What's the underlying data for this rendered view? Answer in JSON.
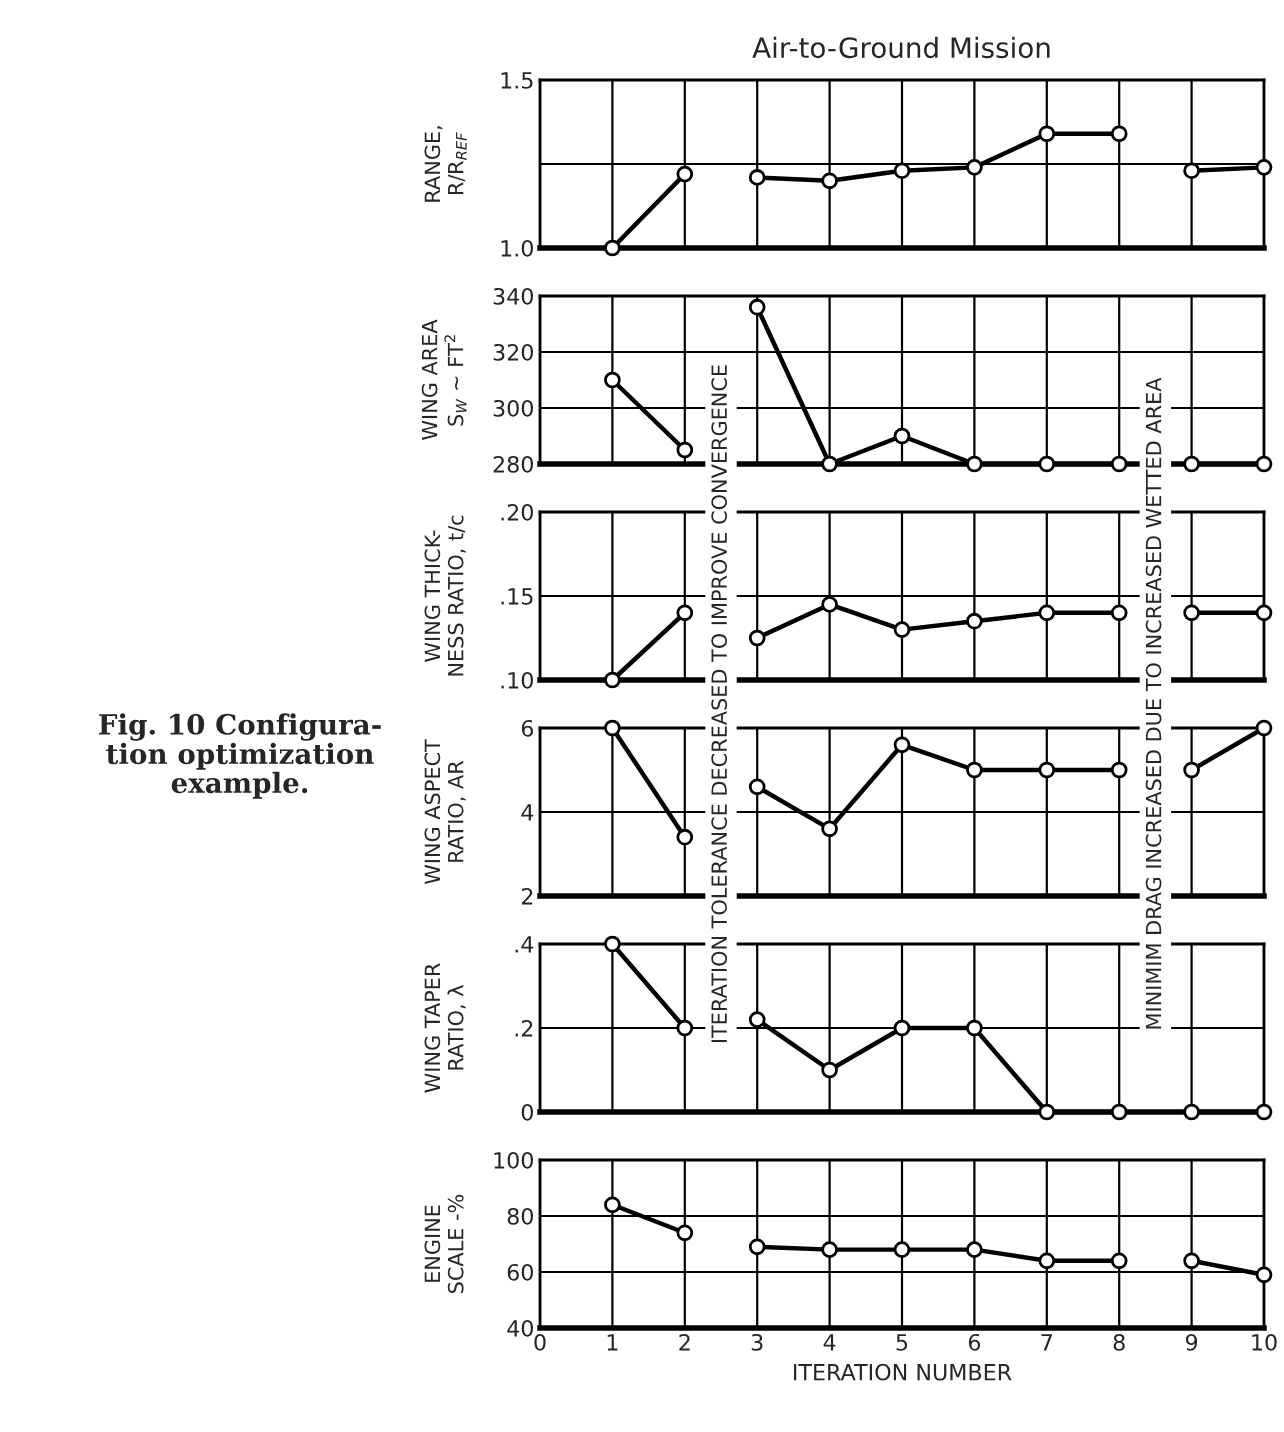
{
  "chart_data": [
    {
      "type": "line",
      "title": "Air-to-Ground Mission",
      "ylabel": "RANGE,\nR/R$_{REF}$",
      "xlim": [
        0,
        10
      ],
      "xticks": [
        0,
        1,
        2,
        3,
        4,
        5,
        6,
        7,
        8,
        9,
        10
      ],
      "ylim": [
        1.0,
        1.5
      ],
      "yticks": [
        {
          "value": 1.0,
          "label": "1.0"
        },
        {
          "value": 1.25,
          "label": null
        },
        {
          "value": 1.5,
          "label": "1.5"
        }
      ],
      "tick_labels": "y",
      "grid": true,
      "marker": "circle",
      "line_style": "solid",
      "annotations": [
        "Fig. 10 Configura-\ntion optimization\nexample.",
        "ITERATION TOLERANCE DECREASED TO IMPROVE CONVERGENCE",
        "MINIMIM DRAG INCREASED DUE TO INCREASED WETTED AREA"
      ],
      "series": [
        {
          "color": "#000000",
          "x": [
            1,
            2
          ],
          "values": [
            1.0,
            1.22
          ]
        },
        {
          "color": "#000000",
          "x": [
            3,
            4,
            5,
            6,
            7,
            8
          ],
          "values": [
            1.21,
            1.2,
            1.23,
            1.24,
            1.34,
            1.34
          ]
        },
        {
          "color": "#000000",
          "x": [
            9,
            10
          ],
          "values": [
            1.23,
            1.24
          ]
        }
      ]
    },
    {
      "type": "line",
      "ylabel": "WING AREA\nS$_{W}$ ~ FT$^{2}$",
      "xlim": [
        0,
        10
      ],
      "xticks": [
        0,
        1,
        2,
        3,
        4,
        5,
        6,
        7,
        8,
        9,
        10
      ],
      "ylim": [
        280,
        340
      ],
      "yticks": [
        280,
        300,
        320,
        340
      ],
      "tick_labels": "y",
      "grid": true,
      "marker": "circle",
      "line_style": "solid",
      "series": [
        {
          "color": "#000000",
          "x": [
            1,
            2
          ],
          "values": [
            310,
            285
          ]
        },
        {
          "color": "#000000",
          "x": [
            3,
            4,
            5,
            6,
            7,
            8
          ],
          "values": [
            336,
            280,
            290,
            280,
            280,
            280
          ]
        },
        {
          "color": "#000000",
          "x": [
            9,
            10
          ],
          "values": [
            280,
            280
          ]
        }
      ]
    },
    {
      "type": "line",
      "ylabel": "WING THICK-\nNESS RATIO, t/c",
      "xlim": [
        0,
        10
      ],
      "xticks": [
        0,
        1,
        2,
        3,
        4,
        5,
        6,
        7,
        8,
        9,
        10
      ],
      "ylim": [
        0.1,
        0.2
      ],
      "yticks": [
        {
          "value": 0.1,
          "label": ".10"
        },
        {
          "value": 0.15,
          "label": ".15"
        },
        {
          "value": 0.2,
          "label": ".20"
        }
      ],
      "tick_labels": "y",
      "grid": true,
      "marker": "circle",
      "line_style": "solid",
      "series": [
        {
          "color": "#000000",
          "x": [
            1,
            2
          ],
          "values": [
            0.1,
            0.14
          ]
        },
        {
          "color": "#000000",
          "x": [
            3,
            4,
            5,
            6,
            7,
            8
          ],
          "values": [
            0.125,
            0.145,
            0.13,
            0.135,
            0.14,
            0.14
          ]
        },
        {
          "color": "#000000",
          "x": [
            9,
            10
          ],
          "values": [
            0.14,
            0.14
          ]
        }
      ]
    },
    {
      "type": "line",
      "ylabel": "WING ASPECT\nRATIO, AR",
      "xlim": [
        0,
        10
      ],
      "xticks": [
        0,
        1,
        2,
        3,
        4,
        5,
        6,
        7,
        8,
        9,
        10
      ],
      "ylim": [
        2,
        6
      ],
      "yticks": [
        2,
        4,
        6
      ],
      "tick_labels": "y",
      "grid": true,
      "marker": "circle",
      "line_style": "solid",
      "series": [
        {
          "color": "#000000",
          "x": [
            1,
            2
          ],
          "values": [
            6,
            3.4
          ]
        },
        {
          "color": "#000000",
          "x": [
            3,
            4,
            5,
            6,
            7,
            8
          ],
          "values": [
            4.6,
            3.6,
            5.6,
            5,
            5,
            5
          ]
        },
        {
          "color": "#000000",
          "x": [
            9,
            10
          ],
          "values": [
            5,
            6
          ]
        }
      ]
    },
    {
      "type": "line",
      "ylabel": "WING TAPER\nRATIO, λ",
      "xlim": [
        0,
        10
      ],
      "xticks": [
        0,
        1,
        2,
        3,
        4,
        5,
        6,
        7,
        8,
        9,
        10
      ],
      "ylim": [
        0,
        0.4
      ],
      "yticks": [
        0,
        {
          "value": 0.2,
          "label": ".2"
        },
        {
          "value": 0.4,
          "label": ".4"
        }
      ],
      "tick_labels": "y",
      "grid": true,
      "marker": "circle",
      "line_style": "solid",
      "series": [
        {
          "color": "#000000",
          "x": [
            1,
            2
          ],
          "values": [
            0.4,
            0.2
          ]
        },
        {
          "color": "#000000",
          "x": [
            3,
            4,
            5,
            6,
            7,
            8
          ],
          "values": [
            0.22,
            0.1,
            0.2,
            0.2,
            0,
            0
          ]
        },
        {
          "color": "#000000",
          "x": [
            9,
            10
          ],
          "values": [
            0,
            0
          ]
        }
      ]
    },
    {
      "type": "line",
      "ylabel": "ENGINE\nSCALE -%",
      "xlabel": "ITERATION NUMBER",
      "xlim": [
        0,
        10
      ],
      "xticks": [
        0,
        1,
        2,
        3,
        4,
        5,
        6,
        7,
        8,
        9,
        10
      ],
      "ylim": [
        40,
        100
      ],
      "yticks": [
        40,
        60,
        80,
        100
      ],
      "grid": true,
      "marker": "circle",
      "line_style": "solid",
      "series": [
        {
          "color": "#000000",
          "x": [
            1,
            2
          ],
          "values": [
            84,
            74
          ]
        },
        {
          "color": "#000000",
          "x": [
            3,
            4,
            5,
            6,
            7,
            8
          ],
          "values": [
            69,
            68,
            68,
            68,
            64,
            64
          ]
        },
        {
          "color": "#000000",
          "x": [
            9,
            10
          ],
          "values": [
            64,
            59
          ]
        }
      ]
    }
  ]
}
